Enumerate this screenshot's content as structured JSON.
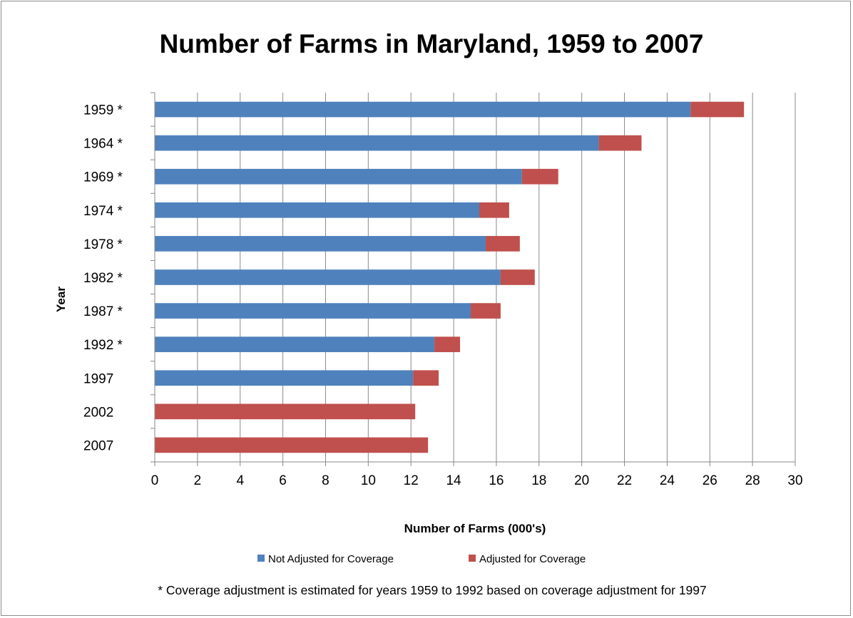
{
  "chart_data": {
    "type": "bar",
    "orientation": "horizontal",
    "stacked": true,
    "title": "Number of Farms in Maryland, 1959 to 2007",
    "xlabel": "Number of Farms (000's)",
    "ylabel": "Year",
    "xlim": [
      0,
      30
    ],
    "xticks": [
      "0",
      "2",
      "4",
      "6",
      "8",
      "10",
      "12",
      "14",
      "16",
      "18",
      "20",
      "22",
      "24",
      "26",
      "28",
      "30"
    ],
    "categories": [
      "1959 *",
      "1964 *",
      "1969 *",
      "1974 *",
      "1978 *",
      "1982 *",
      "1987 *",
      "1992 *",
      "1997",
      "2002",
      "2007"
    ],
    "series": [
      {
        "name": "Not Adjusted for Coverage",
        "color": "#4f81bd",
        "values": [
          25.1,
          20.8,
          17.2,
          15.2,
          15.5,
          16.2,
          14.8,
          13.1,
          12.1,
          0,
          0
        ]
      },
      {
        "name": "Adjusted for Coverage",
        "color": "#c0504d",
        "values": [
          2.5,
          2.0,
          1.7,
          1.4,
          1.6,
          1.6,
          1.4,
          1.2,
          1.2,
          12.2,
          12.8
        ]
      }
    ],
    "grid": {
      "x_major": true,
      "y_major": false
    },
    "legend_position": "bottom",
    "footnote": "* Coverage adjustment is estimated for years 1959 to 1992 based on coverage adjustment for 1997"
  }
}
